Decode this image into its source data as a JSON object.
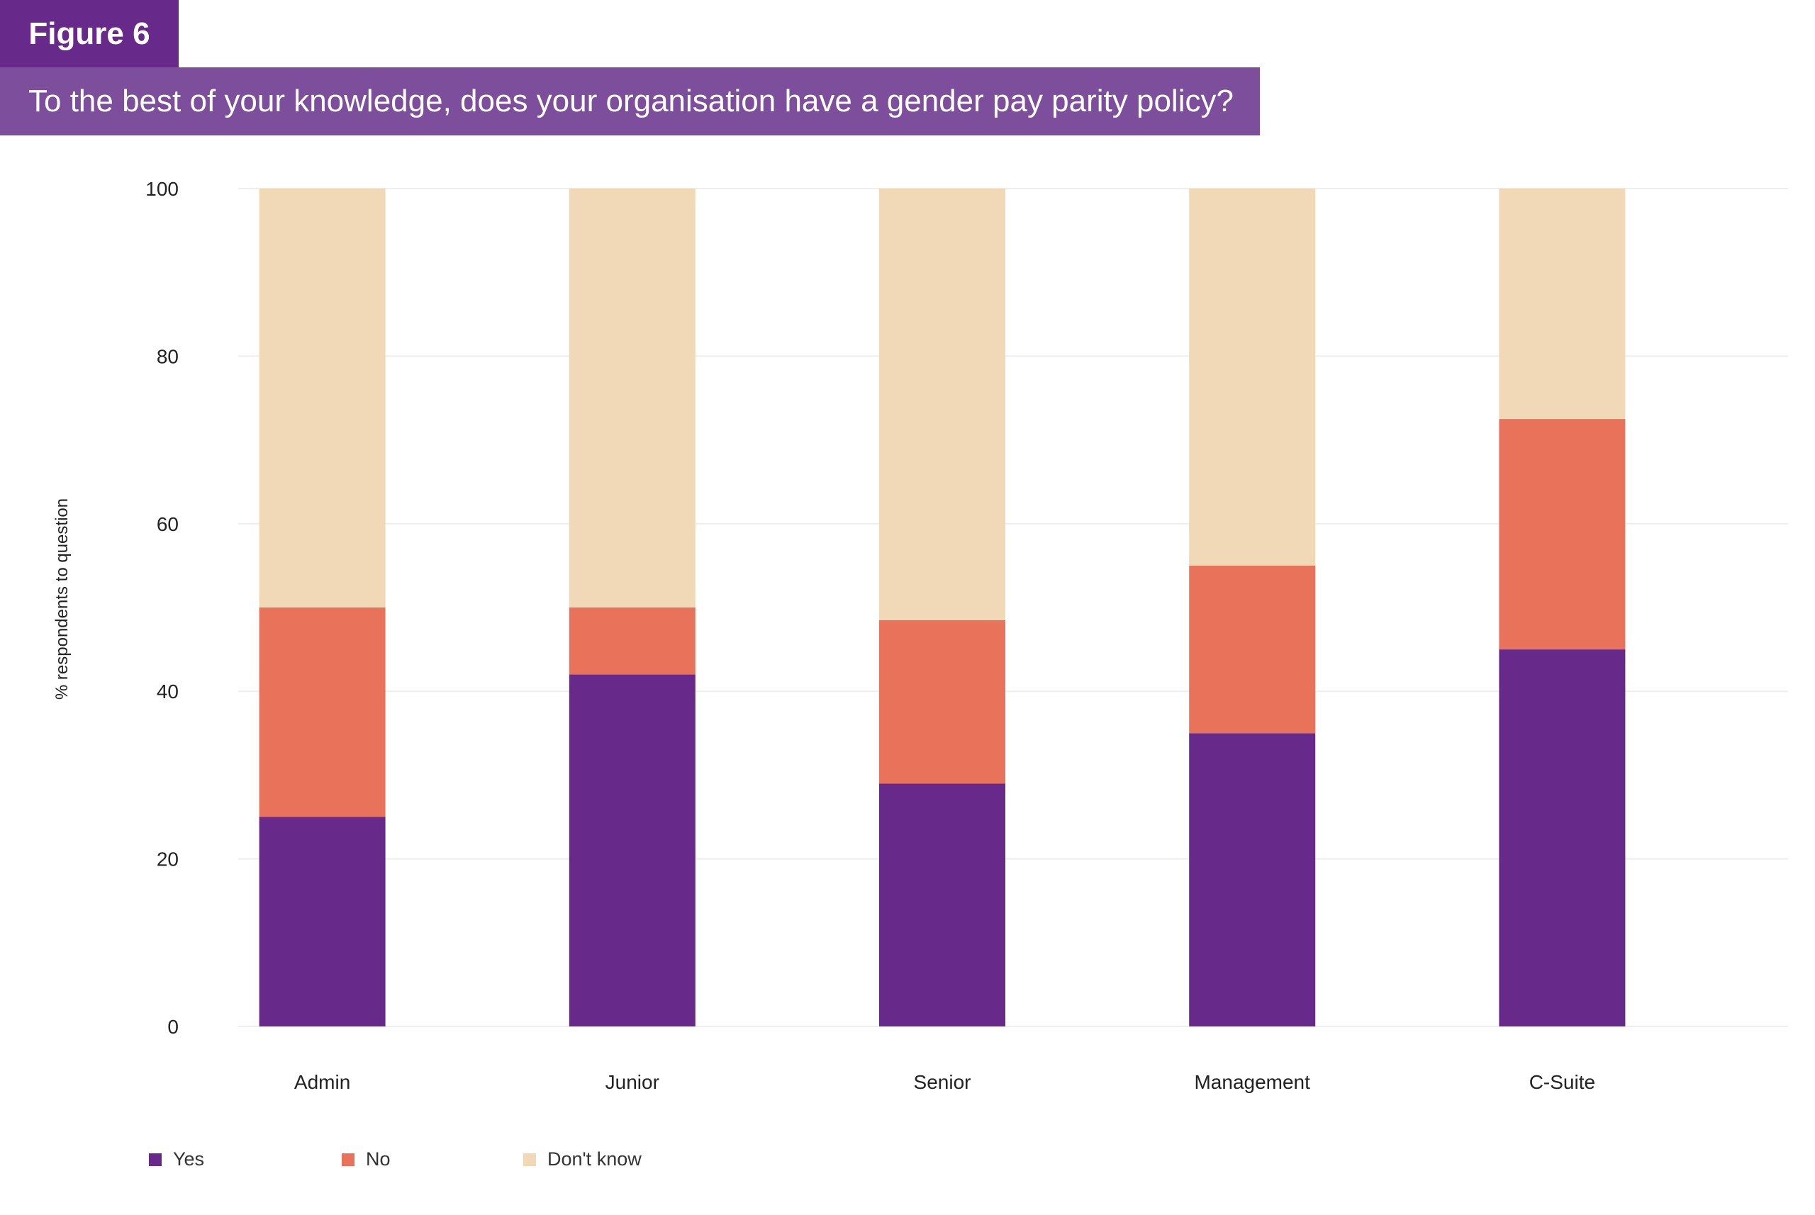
{
  "header": {
    "figure_label": "Figure 6",
    "title": "To the best of your knowledge, does your organisation have a gender pay parity policy?"
  },
  "colors": {
    "yes": "#672a8a",
    "no": "#e8735a",
    "dont_know": "#f1d9b8",
    "grid": "#eeeeee",
    "text": "#222222"
  },
  "chart_data": {
    "type": "bar",
    "stacked": true,
    "ylabel": "% respondents to question",
    "xlabel": "",
    "ylim": [
      0,
      100
    ],
    "yticks": [
      0,
      20,
      40,
      60,
      80,
      100
    ],
    "categories": [
      "Admin",
      "Junior",
      "Senior",
      "Management",
      "C-Suite"
    ],
    "series": [
      {
        "name": "Yes",
        "color": "#672a8a",
        "values": [
          25,
          42,
          29,
          35,
          45
        ]
      },
      {
        "name": "No",
        "color": "#e8735a",
        "values": [
          25,
          8,
          19.5,
          20,
          27.5
        ]
      },
      {
        "name": "Don't know",
        "color": "#f1d9b8",
        "values": [
          50,
          50,
          51.5,
          45,
          27.5
        ]
      }
    ],
    "grid": true,
    "legend_position": "bottom-left"
  }
}
